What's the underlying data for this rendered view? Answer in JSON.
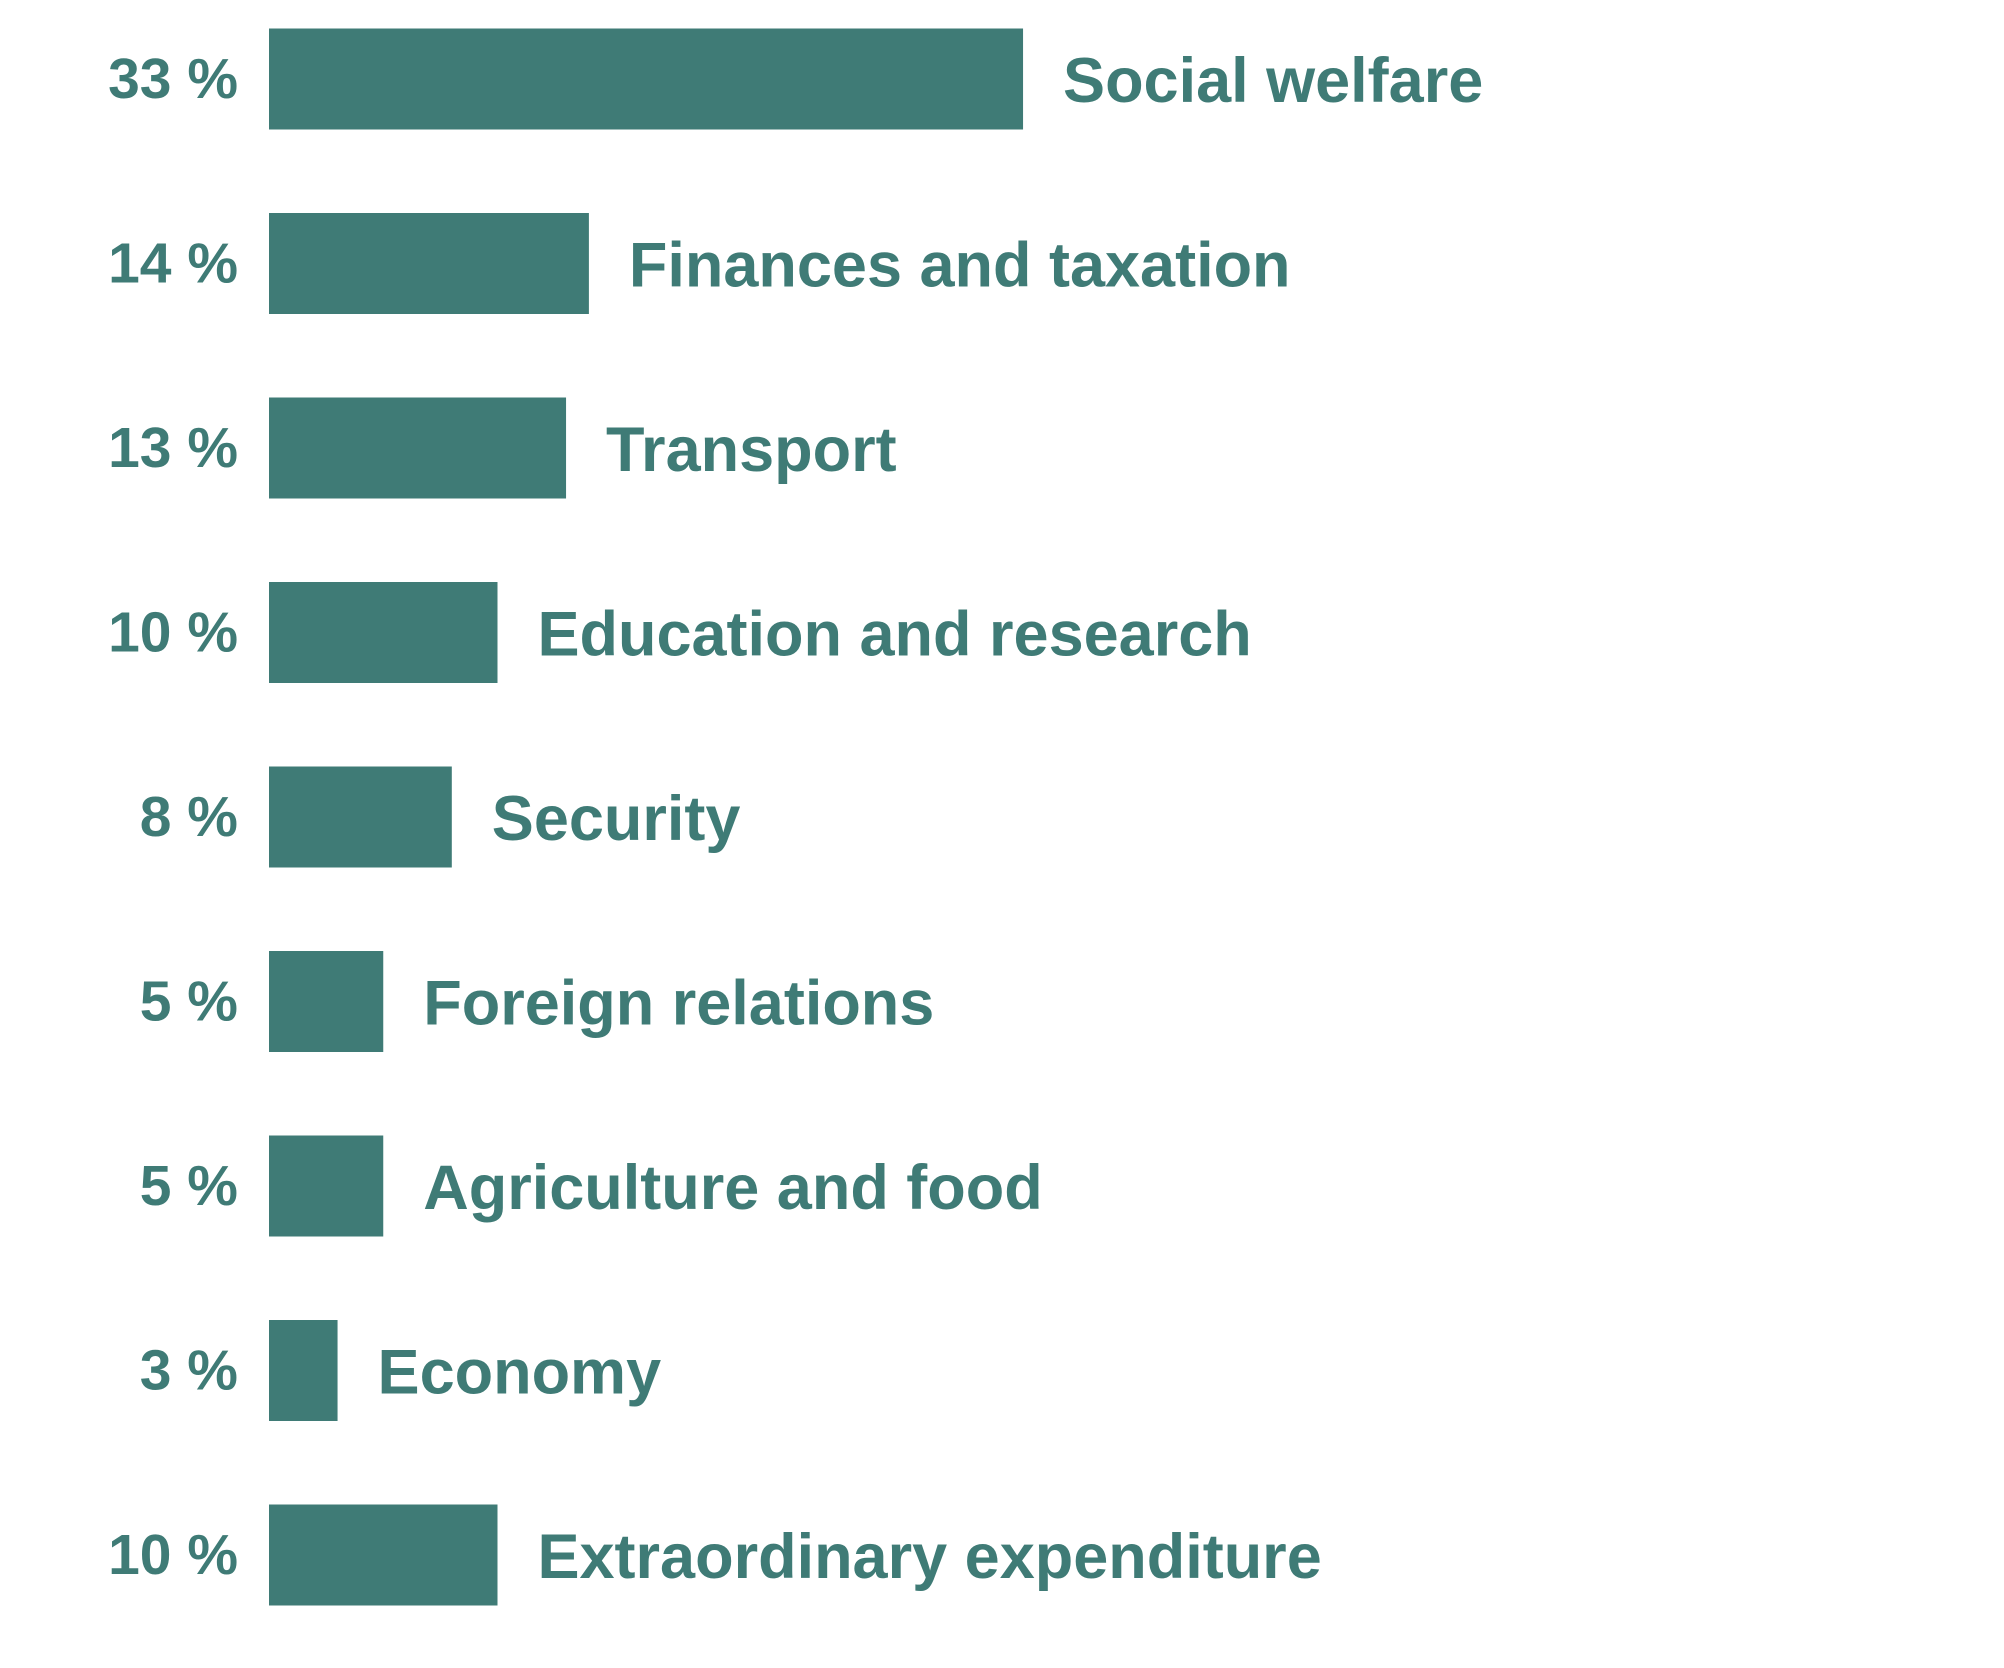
{
  "colors": {
    "bar": "#3f7b76",
    "text": "#3f7b76",
    "background": "#ffffff"
  },
  "chart_data": {
    "type": "bar",
    "orientation": "horizontal",
    "title": "",
    "xlabel": "",
    "ylabel": "",
    "unit": "%",
    "grid": false,
    "legend": "none",
    "xlim": [
      0,
      33
    ],
    "categories": [
      "Social welfare",
      "Finances and taxation",
      "Transport",
      "Education and research",
      "Security",
      "Foreign relations",
      "Agriculture and food",
      "Economy",
      "Extraordinary expenditure"
    ],
    "values": [
      33,
      14,
      13,
      10,
      8,
      5,
      5,
      3,
      10
    ],
    "value_labels": [
      "33 %",
      "14 %",
      "13 %",
      "10 %",
      "8 %",
      "5 %",
      "5 %",
      "3 %",
      "10 %"
    ]
  }
}
